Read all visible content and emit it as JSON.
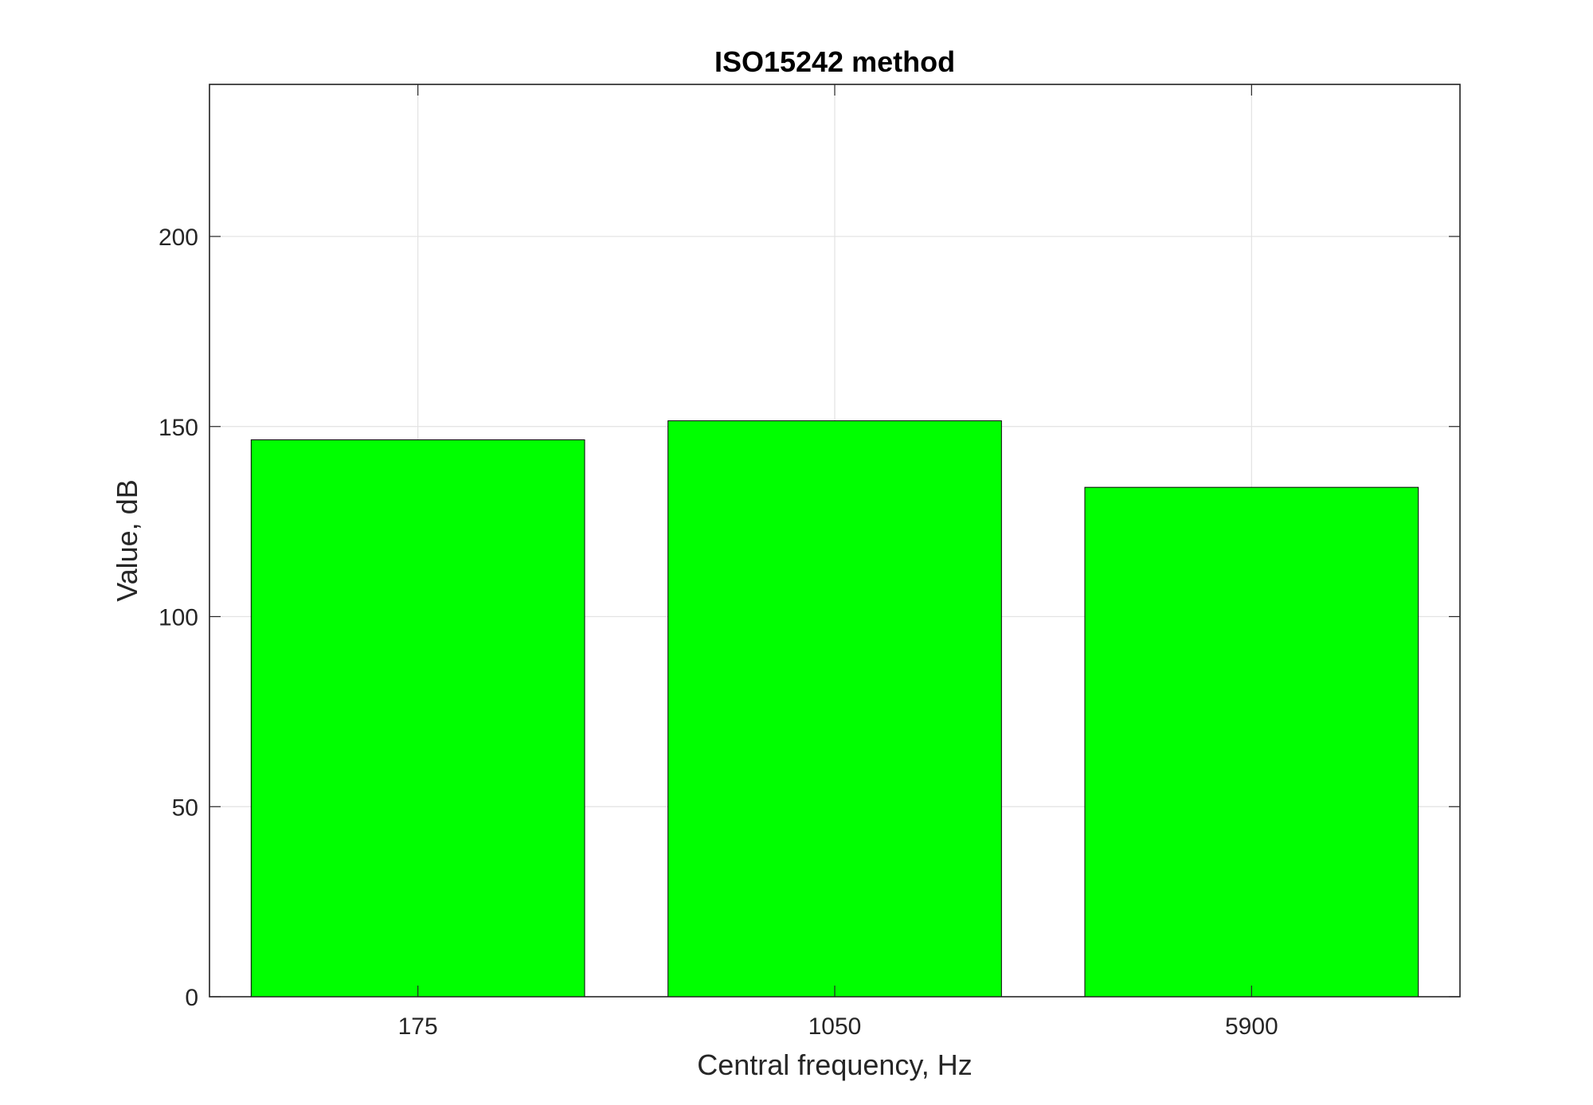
{
  "chart_data": {
    "type": "bar",
    "title": "ISO15242 method",
    "xlabel": "Central frequency, Hz",
    "ylabel": "Value, dB",
    "categories": [
      "175",
      "1050",
      "5900"
    ],
    "values": [
      146.5,
      151.5,
      134.0
    ],
    "ylim": [
      0,
      240
    ],
    "yticks": [
      0,
      50,
      100,
      150,
      200
    ],
    "grid": true,
    "bar_color": "#00ff00",
    "edge_color": "#000000"
  }
}
